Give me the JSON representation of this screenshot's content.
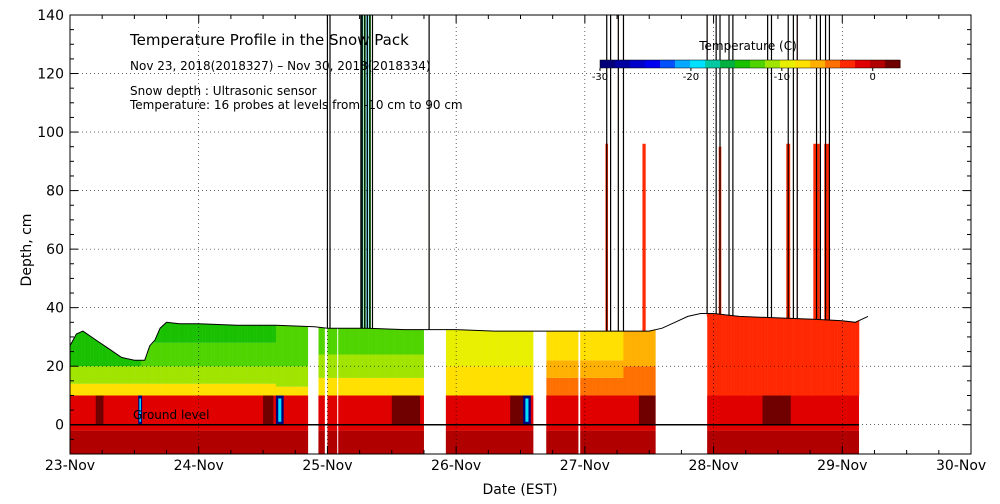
{
  "chart_data": {
    "type": "heatmap",
    "title": "Temperature Profile in the Snow Pack",
    "subtitle": "Nov 23, 2018(2018327) – Nov 30, 2018(2018334)",
    "notes": [
      "Snow depth : Ultrasonic sensor",
      "Temperature: 16 probes at levels from -10 cm to 90 cm"
    ],
    "xlabel": "Date (EST)",
    "ylabel": "Depth, cm",
    "x_unit": "days since 23-Nov 00:00",
    "xlim": [
      0,
      7
    ],
    "ylim": [
      -10,
      140
    ],
    "x_tick_labels": [
      "23-Nov",
      "24-Nov",
      "25-Nov",
      "26-Nov",
      "27-Nov",
      "28-Nov",
      "29-Nov",
      "30-Nov"
    ],
    "y_ticks": [
      0,
      20,
      40,
      60,
      80,
      100,
      120,
      140
    ],
    "grid": true,
    "ground_label": "Ground level",
    "colorbar": {
      "title": "Temperature (C)",
      "range": [
        -30,
        3
      ],
      "tick_values": [
        -30,
        -20,
        -10,
        0
      ],
      "tick_labels": [
        "-30",
        "-20",
        "-10",
        "0"
      ],
      "colors": [
        "#00007a",
        "#0000a0",
        "#0000c8",
        "#0000f0",
        "#0050ff",
        "#00a8ff",
        "#00e0ff",
        "#00c8a0",
        "#00b040",
        "#18c000",
        "#50d400",
        "#a0e400",
        "#e8f000",
        "#ffe000",
        "#ffb000",
        "#ff7000",
        "#ff2800",
        "#e00000",
        "#b00000",
        "#700000"
      ]
    },
    "snow_depth": [
      [
        0,
        27
      ],
      [
        0.05,
        31
      ],
      [
        0.1,
        32
      ],
      [
        0.2,
        29
      ],
      [
        0.3,
        26
      ],
      [
        0.4,
        23
      ],
      [
        0.5,
        22
      ],
      [
        0.58,
        22
      ],
      [
        0.62,
        27
      ],
      [
        0.66,
        29
      ],
      [
        0.7,
        33
      ],
      [
        0.75,
        35
      ],
      [
        0.85,
        34.5
      ],
      [
        1.0,
        34.5
      ],
      [
        1.3,
        34
      ],
      [
        1.6,
        34
      ],
      [
        1.9,
        33.5
      ],
      [
        2.0,
        33
      ],
      [
        2.3,
        33
      ],
      [
        2.6,
        32.5
      ],
      [
        3.0,
        32.5
      ],
      [
        3.3,
        32
      ],
      [
        3.6,
        32
      ],
      [
        4.0,
        32
      ],
      [
        4.3,
        32
      ],
      [
        4.5,
        32
      ],
      [
        4.6,
        33
      ],
      [
        4.7,
        35
      ],
      [
        4.8,
        37
      ],
      [
        4.9,
        38
      ],
      [
        5.0,
        38
      ],
      [
        5.2,
        37
      ],
      [
        5.5,
        36.5
      ],
      [
        5.8,
        36
      ],
      [
        6.0,
        35.5
      ],
      [
        6.1,
        35
      ],
      [
        6.2,
        37
      ]
    ],
    "snow_layers": [
      {
        "x0": 0,
        "x1": 0.55,
        "bands": [
          [
            10,
            14,
            "#ffe000"
          ],
          [
            14,
            20,
            "#a0e400"
          ],
          [
            20,
            100,
            "#18c000"
          ]
        ]
      },
      {
        "x0": 0.55,
        "x1": 1.6,
        "bands": [
          [
            10,
            14,
            "#ffe000"
          ],
          [
            14,
            20,
            "#a0e400"
          ],
          [
            20,
            28,
            "#50d400"
          ],
          [
            28,
            100,
            "#18c000"
          ]
        ]
      },
      {
        "x0": 1.6,
        "x1": 1.85,
        "bands": [
          [
            10,
            13,
            "#ffe000"
          ],
          [
            13,
            20,
            "#a0e400"
          ],
          [
            20,
            100,
            "#50d400"
          ]
        ]
      },
      {
        "x0": 1.85,
        "x1": 1.93,
        "bands": []
      },
      {
        "x0": 1.93,
        "x1": 2.75,
        "bands": [
          [
            10,
            16,
            "#ffe000"
          ],
          [
            16,
            24,
            "#a0e400"
          ],
          [
            24,
            100,
            "#50d400"
          ]
        ]
      },
      {
        "x0": 2.75,
        "x1": 2.92,
        "bands": []
      },
      {
        "x0": 2.92,
        "x1": 3.6,
        "bands": [
          [
            10,
            20,
            "#ffe000"
          ],
          [
            20,
            100,
            "#e8f000"
          ]
        ]
      },
      {
        "x0": 3.6,
        "x1": 3.7,
        "bands": []
      },
      {
        "x0": 3.7,
        "x1": 4.3,
        "bands": [
          [
            10,
            16,
            "#ff7000"
          ],
          [
            16,
            22,
            "#ffb000"
          ],
          [
            22,
            100,
            "#ffe000"
          ]
        ]
      },
      {
        "x0": 4.3,
        "x1": 4.55,
        "bands": [
          [
            10,
            20,
            "#ff7000"
          ],
          [
            20,
            100,
            "#ffb000"
          ]
        ]
      },
      {
        "x0": 4.55,
        "x1": 4.95,
        "bands": []
      },
      {
        "x0": 4.95,
        "x1": 6.13,
        "bands": [
          [
            10,
            100,
            "#ff2800"
          ]
        ]
      }
    ],
    "ground_dark": [
      [
        0.2,
        0.26
      ],
      [
        1.5,
        1.58
      ],
      [
        2.5,
        2.72
      ],
      [
        3.42,
        3.52
      ],
      [
        4.42,
        4.55
      ],
      [
        5.38,
        5.6
      ]
    ],
    "ground_blue": [
      [
        0.53,
        0.56
      ],
      [
        1.6,
        1.66
      ],
      [
        3.52,
        3.58
      ]
    ],
    "ground_gaps": [
      [
        1.85,
        1.93
      ],
      [
        1.98,
        2.0
      ],
      [
        2.75,
        2.92
      ],
      [
        3.6,
        3.7
      ],
      [
        3.95,
        3.96
      ],
      [
        4.55,
        4.95
      ]
    ],
    "spikes": [
      {
        "x": 2.0,
        "y0": 33,
        "y1": 140,
        "w": 0.006,
        "c": "#18c000"
      },
      {
        "x": 2.02,
        "y0": 33,
        "y1": 140,
        "w": 0.006,
        "c": "#18c000"
      },
      {
        "x": 2.27,
        "y0": 33,
        "y1": 140,
        "w": 0.015,
        "c": "#00c8a0"
      },
      {
        "x": 2.29,
        "y0": 33,
        "y1": 140,
        "w": 0.015,
        "c": "#18c000"
      },
      {
        "x": 2.31,
        "y0": 33,
        "y1": 140,
        "w": 0.015,
        "c": "#00a8ff"
      },
      {
        "x": 2.33,
        "y0": 33,
        "y1": 140,
        "w": 0.015,
        "c": "#18c000"
      },
      {
        "x": 2.79,
        "y0": 33,
        "y1": 87,
        "w": 0.006,
        "c": "#e8f000"
      },
      {
        "x": 4.17,
        "y0": 32,
        "y1": 96,
        "w": 0.02,
        "c": "#ff2800"
      },
      {
        "x": 4.2,
        "y0": 32,
        "y1": 140,
        "w": 0.006,
        "c": "#ff2800"
      },
      {
        "x": 4.26,
        "y0": 32,
        "y1": 140,
        "w": 0.006,
        "c": "#ff7000"
      },
      {
        "x": 4.46,
        "y0": 32,
        "y1": 96,
        "w": 0.025,
        "c": "#ff2800"
      },
      {
        "x": 4.95,
        "y0": 37,
        "y1": 140,
        "w": 0.006,
        "c": "#ff2800"
      },
      {
        "x": 5.05,
        "y0": 37,
        "y1": 95,
        "w": 0.02,
        "c": "#ff2800"
      },
      {
        "x": 5.12,
        "y0": 37,
        "y1": 140,
        "w": 0.006,
        "c": "#ff2800"
      },
      {
        "x": 5.45,
        "y0": 36,
        "y1": 140,
        "w": 0.006,
        "c": "#ff2800"
      },
      {
        "x": 5.58,
        "y0": 36,
        "y1": 96,
        "w": 0.03,
        "c": "#ff2800"
      },
      {
        "x": 5.65,
        "y0": 36,
        "y1": 140,
        "w": 0.006,
        "c": "#ff2800"
      },
      {
        "x": 5.8,
        "y0": 35,
        "y1": 96,
        "w": 0.05,
        "c": "#ff2800"
      },
      {
        "x": 5.88,
        "y0": 35,
        "y1": 96,
        "w": 0.04,
        "c": "#ff2800"
      }
    ],
    "black_lines": [
      2.0,
      2.02,
      2.26,
      2.27,
      2.29,
      2.31,
      2.33,
      2.35,
      2.79,
      4.17,
      4.2,
      4.26,
      4.3,
      4.95,
      5.02,
      5.05,
      5.12,
      5.15,
      5.42,
      5.45,
      5.58,
      5.62,
      5.65,
      5.8,
      5.83,
      5.87,
      5.9
    ],
    "white_lines": [
      2.08,
      3.96
    ]
  }
}
